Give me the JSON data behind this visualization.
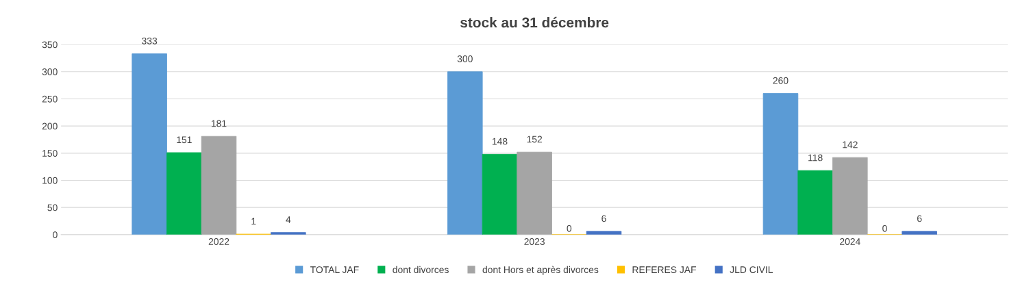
{
  "chart_data": {
    "type": "bar",
    "title": "stock au 31 décembre",
    "categories": [
      "2022",
      "2023",
      "2024"
    ],
    "series": [
      {
        "name": "TOTAL JAF",
        "color": "#5b9bd5",
        "values": [
          333,
          300,
          260
        ]
      },
      {
        "name": "dont divorces",
        "color": "#00b050",
        "values": [
          151,
          148,
          118
        ]
      },
      {
        "name": "dont Hors et après divorces",
        "color": "#a5a5a5",
        "values": [
          181,
          152,
          142
        ]
      },
      {
        "name": "REFERES JAF",
        "color": "#ffc000",
        "values": [
          1,
          0,
          0
        ]
      },
      {
        "name": "JLD CIVIL",
        "color": "#4472c4",
        "values": [
          4,
          6,
          6
        ]
      }
    ],
    "ylim": [
      0,
      350
    ],
    "yticks": [
      0,
      50,
      100,
      150,
      200,
      250,
      300,
      350
    ],
    "grid": "y",
    "legend": "bottom",
    "data_labels": true
  }
}
